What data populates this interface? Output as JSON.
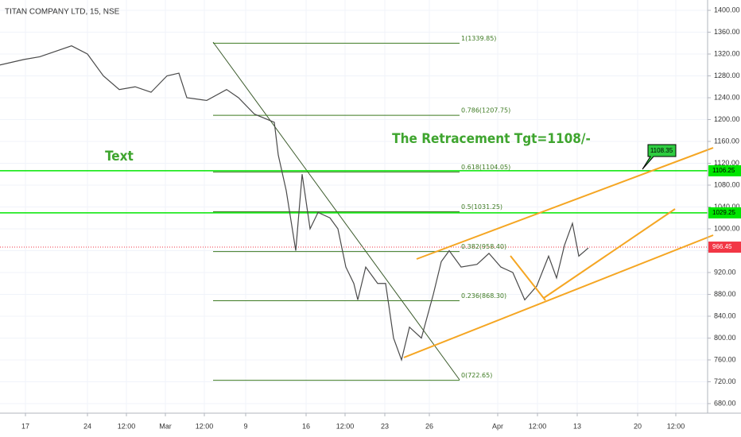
{
  "chart_data": {
    "type": "line",
    "title": "TITAN COMPANY LTD, 15, NSE",
    "annotations": {
      "text": "Text",
      "retracement": "The Retracement Tgt=1108/-"
    },
    "x": [
      0,
      6,
      10,
      18,
      22,
      26,
      30,
      34,
      38,
      42,
      45,
      47,
      52,
      57,
      60,
      64,
      69,
      70,
      72,
      74.4,
      76,
      78,
      80,
      83,
      85,
      87,
      89,
      90,
      92,
      95,
      97,
      99,
      101,
      103,
      106,
      109,
      111,
      113,
      116,
      120,
      123,
      126,
      129,
      132,
      135,
      138,
      140,
      142,
      144,
      145.6,
      148
    ],
    "series": [
      {
        "color": "#4a4a4a",
        "values": [
          1300,
          1310,
          1315,
          1335,
          1320,
          1280,
          1255,
          1260,
          1250,
          1280,
          1285,
          1240,
          1235,
          1255,
          1240,
          1210,
          1195,
          1135,
          1070,
          960,
          1100,
          1000,
          1030,
          1020,
          1000,
          930,
          900,
          870,
          930,
          900,
          900,
          800,
          760,
          820,
          800,
          880,
          940,
          960,
          930,
          935,
          955,
          930,
          920,
          870,
          895,
          950,
          910,
          970,
          1010,
          950,
          965
        ]
      }
    ],
    "fib_levels": [
      {
        "value": 1339.85,
        "label": "1(1339.85)"
      },
      {
        "value": 1207.75,
        "label": "0.786(1207.75)"
      },
      {
        "value": 1104.05,
        "label": "0.618(1104.05)"
      },
      {
        "value": 1031.25,
        "label": "0.5(1031.25)"
      },
      {
        "value": 958.4,
        "label": "0.382(958.40)"
      },
      {
        "value": 868.3,
        "label": "0.236(868.30)"
      },
      {
        "value": 722.65,
        "label": "0(722.65)"
      }
    ],
    "horizontal_levels": [
      {
        "value": 1106.25,
        "label": "1106.25",
        "color": "#00e600"
      },
      {
        "value": 1029.25,
        "label": "1029.25",
        "color": "#00e600"
      }
    ],
    "last_price": {
      "value": 966.45,
      "label": "966.45",
      "color": "#f23645"
    },
    "target": {
      "value": 1108.35,
      "label": "1108.35"
    },
    "xlim": [
      0,
      178
    ],
    "ylim": [
      662.5,
      1418.9
    ],
    "xticks": [
      {
        "value": 6.4,
        "label": "17"
      },
      {
        "value": 22,
        "label": "24"
      },
      {
        "value": 31.8,
        "label": "12:00"
      },
      {
        "value": 41.6,
        "label": "Mar"
      },
      {
        "value": 51.4,
        "label": "12:00"
      },
      {
        "value": 61.8,
        "label": "9"
      },
      {
        "value": 77,
        "label": "16"
      },
      {
        "value": 86.8,
        "label": "12:00"
      },
      {
        "value": 96.8,
        "label": "23"
      },
      {
        "value": 108,
        "label": "26"
      },
      {
        "value": 125.2,
        "label": "Apr"
      },
      {
        "value": 135.2,
        "label": "12:00"
      },
      {
        "value": 145.2,
        "label": "13"
      },
      {
        "value": 160.4,
        "label": "20"
      },
      {
        "value": 170,
        "label": "12:00"
      }
    ],
    "yticks": [
      {
        "value": 680,
        "label": "680.00"
      },
      {
        "value": 720,
        "label": "720.00"
      },
      {
        "value": 760,
        "label": "760.00"
      },
      {
        "value": 800,
        "label": "800.00"
      },
      {
        "value": 840,
        "label": "840.00"
      },
      {
        "value": 880,
        "label": "880.00"
      },
      {
        "value": 920,
        "label": "920.00"
      },
      {
        "value": 960,
        "label": "960.00"
      },
      {
        "value": 1000,
        "label": "1000.00"
      },
      {
        "value": 1040,
        "label": "1040.00"
      },
      {
        "value": 1080,
        "label": "1080.00"
      },
      {
        "value": 1120,
        "label": "1120.00"
      },
      {
        "value": 1160,
        "label": "1160.00"
      },
      {
        "value": 1200,
        "label": "1200.00"
      },
      {
        "value": 1240,
        "label": "1240.00"
      },
      {
        "value": 1280,
        "label": "1280.00"
      },
      {
        "value": 1320,
        "label": "1320.00"
      },
      {
        "value": 1360,
        "label": "1360.00"
      },
      {
        "value": 1400,
        "label": "1400.00"
      }
    ],
    "grid": true
  }
}
